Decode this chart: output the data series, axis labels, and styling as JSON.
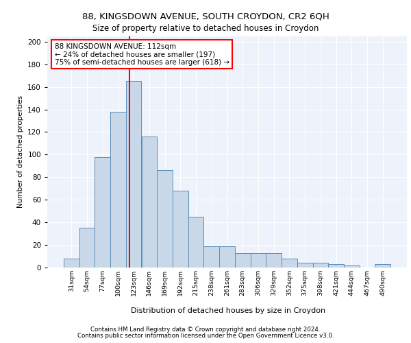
{
  "title1": "88, KINGSDOWN AVENUE, SOUTH CROYDON, CR2 6QH",
  "title2": "Size of property relative to detached houses in Croydon",
  "xlabel": "Distribution of detached houses by size in Croydon",
  "ylabel": "Number of detached properties",
  "categories": [
    "31sqm",
    "54sqm",
    "77sqm",
    "100sqm",
    "123sqm",
    "146sqm",
    "169sqm",
    "192sqm",
    "215sqm",
    "238sqm",
    "261sqm",
    "283sqm",
    "306sqm",
    "329sqm",
    "352sqm",
    "375sqm",
    "398sqm",
    "421sqm",
    "444sqm",
    "467sqm",
    "490sqm"
  ],
  "values": [
    8,
    35,
    98,
    138,
    165,
    116,
    86,
    68,
    45,
    19,
    19,
    13,
    13,
    13,
    8,
    4,
    4,
    3,
    2,
    0,
    3
  ],
  "bar_color": "#c8d8e8",
  "bar_edge_color": "#5b8db8",
  "bar_width": 1.0,
  "property_line_x": 3.75,
  "annotation_text": "88 KINGSDOWN AVENUE: 112sqm\n← 24% of detached houses are smaller (197)\n75% of semi-detached houses are larger (618) →",
  "annotation_box_color": "white",
  "annotation_box_edgecolor": "red",
  "line_color": "red",
  "ylim": [
    0,
    205
  ],
  "yticks": [
    0,
    20,
    40,
    60,
    80,
    100,
    120,
    140,
    160,
    180,
    200
  ],
  "background_color": "#eef2fb",
  "grid_color": "white",
  "footer1": "Contains HM Land Registry data © Crown copyright and database right 2024.",
  "footer2": "Contains public sector information licensed under the Open Government Licence v3.0."
}
